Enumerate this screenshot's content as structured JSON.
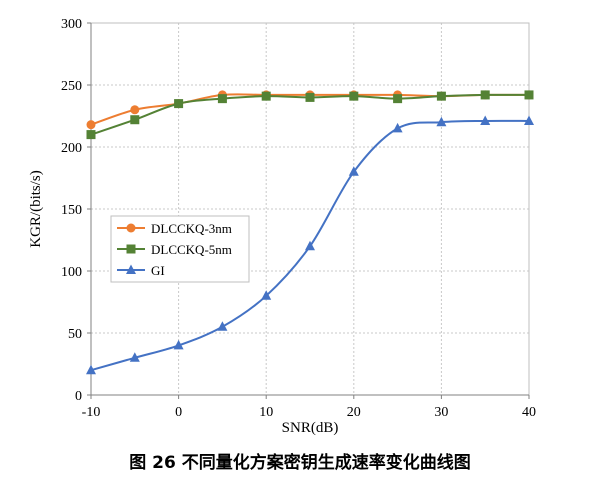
{
  "caption": "图 26 不同量化方案密钥生成速率变化曲线图",
  "chart_data": {
    "type": "line",
    "xlabel": "SNR(dB)",
    "ylabel": "KGR/(bits/s)",
    "xlim": [
      -10,
      40
    ],
    "ylim": [
      0,
      300
    ],
    "xticks": [
      -10,
      0,
      10,
      20,
      30,
      40
    ],
    "yticks": [
      0,
      50,
      100,
      150,
      200,
      250,
      300
    ],
    "grid": "dotted",
    "legend_position": "center-left",
    "x": [
      -10,
      -5,
      0,
      5,
      10,
      15,
      20,
      25,
      30,
      35,
      40
    ],
    "series": [
      {
        "name": "DLCCKQ-3nm",
        "color": "#ED7D31",
        "marker": "circle",
        "values": [
          218,
          230,
          235,
          242,
          242,
          242,
          242,
          242,
          241,
          242,
          242
        ]
      },
      {
        "name": "DLCCKQ-5nm",
        "color": "#548235",
        "marker": "square",
        "values": [
          210,
          222,
          235,
          239,
          241,
          240,
          241,
          239,
          241,
          242,
          242
        ]
      },
      {
        "name": "GI",
        "color": "#4472C4",
        "marker": "triangle",
        "values": [
          20,
          30,
          40,
          55,
          80,
          120,
          180,
          215,
          220,
          221,
          221
        ]
      }
    ]
  }
}
